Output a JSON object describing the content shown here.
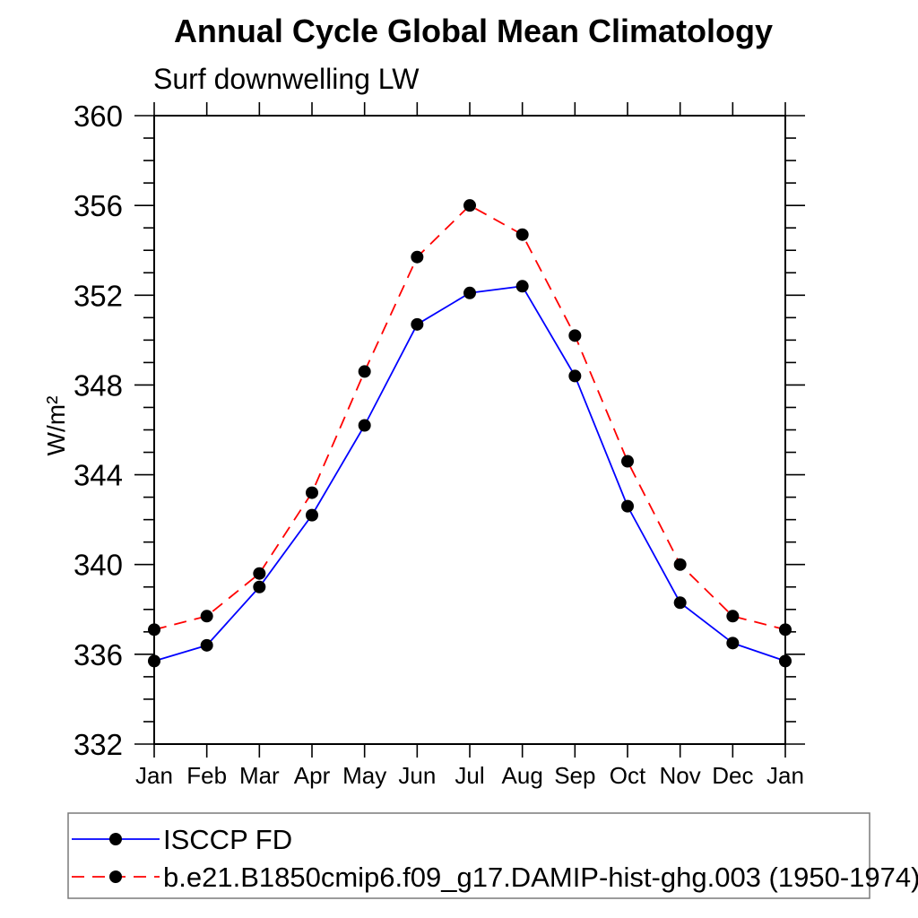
{
  "chart_data": {
    "type": "line",
    "title": "Annual Cycle Global Mean Climatology",
    "subtitle": "Surf downwelling LW",
    "ylabel": "W/m²",
    "xlabel": "",
    "categories": [
      "Jan",
      "Feb",
      "Mar",
      "Apr",
      "May",
      "Jun",
      "Jul",
      "Aug",
      "Sep",
      "Oct",
      "Nov",
      "Dec",
      "Jan"
    ],
    "series": [
      {
        "name": "ISCCP FD",
        "color": "#0000ff",
        "line_style": "solid",
        "marker": "filled-circle",
        "values": [
          335.7,
          336.4,
          339.0,
          342.2,
          346.2,
          350.7,
          352.1,
          352.4,
          348.4,
          342.6,
          338.3,
          336.5,
          335.7
        ]
      },
      {
        "name": "b.e21.B1850cmip6.f09_g17.DAMIP-hist-ghg.003 (1950-1974)",
        "color": "#ff0000",
        "line_style": "dashed",
        "marker": "filled-circle",
        "values": [
          337.1,
          337.7,
          339.6,
          343.2,
          348.6,
          353.7,
          356.0,
          354.7,
          350.2,
          344.6,
          340.0,
          337.7,
          337.1
        ]
      }
    ],
    "ylim": [
      332,
      360
    ],
    "ytick_major_step": 4,
    "ytick_minor_step": 1,
    "ytick_major_labels": [
      "360",
      "356",
      "352",
      "348",
      "344",
      "340",
      "336",
      "332"
    ],
    "grid": false,
    "frame": "box-with-outward-ticks",
    "legend_position": "bottom",
    "marker_color": "#000000",
    "axis_color": "#000000",
    "legend_border_color": "#7a7a7a"
  }
}
